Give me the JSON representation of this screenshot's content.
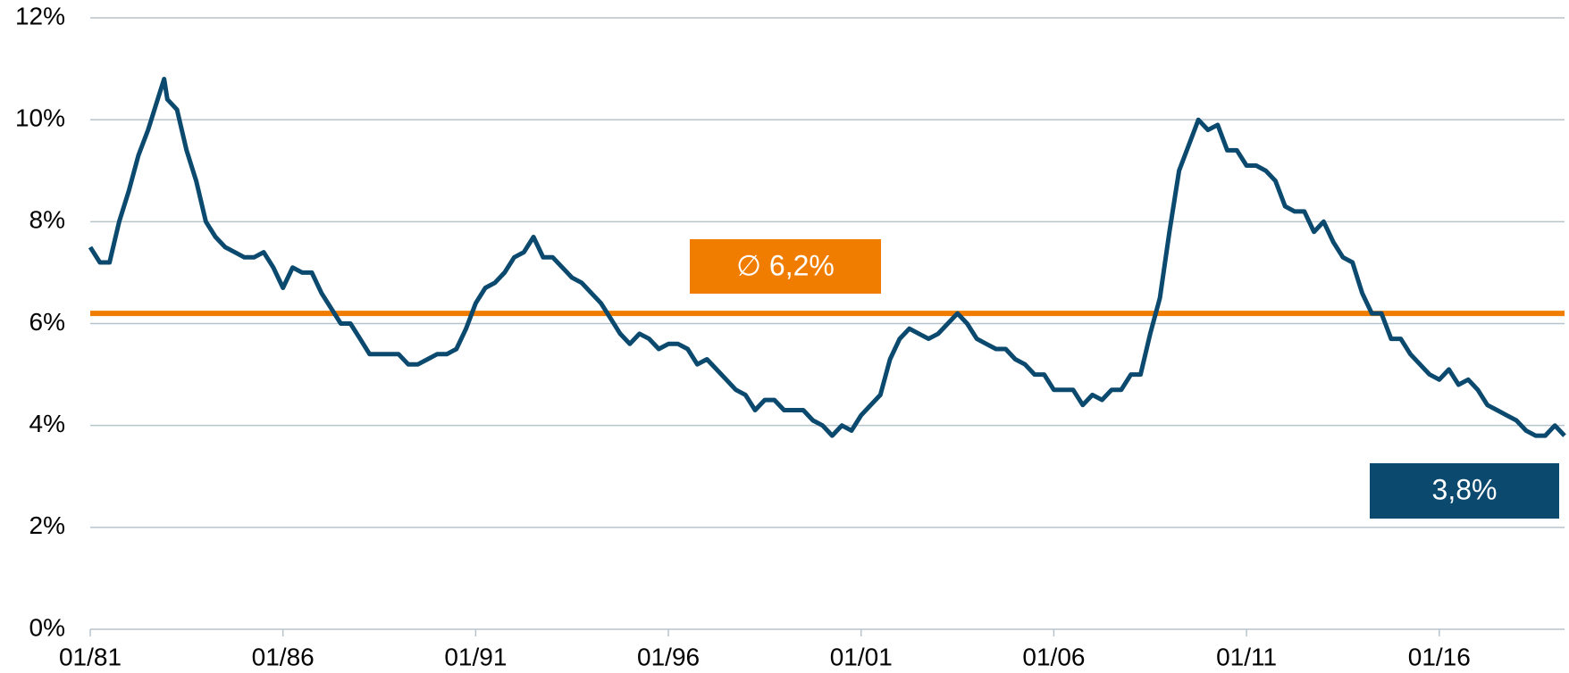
{
  "chart_data": {
    "type": "line",
    "x": [
      "01/81",
      "04/81",
      "07/81",
      "10/81",
      "01/82",
      "04/82",
      "07/82",
      "10/82",
      "12/82",
      "01/83",
      "04/83",
      "07/83",
      "10/83",
      "01/84",
      "04/84",
      "07/84",
      "10/84",
      "01/85",
      "04/85",
      "07/85",
      "10/85",
      "01/86",
      "04/86",
      "07/86",
      "10/86",
      "01/87",
      "04/87",
      "07/87",
      "10/87",
      "01/88",
      "04/88",
      "07/88",
      "10/88",
      "01/89",
      "04/89",
      "07/89",
      "10/89",
      "01/90",
      "04/90",
      "07/90",
      "10/90",
      "01/91",
      "04/91",
      "07/91",
      "10/91",
      "01/92",
      "04/92",
      "07/92",
      "10/92",
      "01/93",
      "04/93",
      "07/93",
      "10/93",
      "01/94",
      "04/94",
      "07/94",
      "10/94",
      "01/95",
      "04/95",
      "07/95",
      "10/95",
      "01/96",
      "04/96",
      "07/96",
      "10/96",
      "01/97",
      "04/97",
      "07/97",
      "10/97",
      "01/98",
      "04/98",
      "07/98",
      "10/98",
      "01/99",
      "04/99",
      "07/99",
      "10/99",
      "01/00",
      "04/00",
      "07/00",
      "10/00",
      "01/01",
      "04/01",
      "07/01",
      "10/01",
      "01/02",
      "04/02",
      "07/02",
      "10/02",
      "01/03",
      "04/03",
      "07/03",
      "10/03",
      "01/04",
      "04/04",
      "07/04",
      "10/04",
      "01/05",
      "04/05",
      "07/05",
      "10/05",
      "01/06",
      "04/06",
      "07/06",
      "10/06",
      "01/07",
      "04/07",
      "07/07",
      "10/07",
      "01/08",
      "04/08",
      "07/08",
      "10/08",
      "01/09",
      "04/09",
      "07/09",
      "10/09",
      "01/10",
      "04/10",
      "07/10",
      "10/10",
      "01/11",
      "04/11",
      "07/11",
      "10/11",
      "01/12",
      "04/12",
      "07/12",
      "10/12",
      "01/13",
      "04/13",
      "07/13",
      "10/13",
      "01/14",
      "04/14",
      "07/14",
      "10/14",
      "01/15",
      "04/15",
      "07/15",
      "10/15",
      "01/16",
      "04/16",
      "07/16",
      "10/16",
      "01/17",
      "04/17",
      "07/17",
      "10/17",
      "01/18",
      "04/18",
      "07/18",
      "10/18",
      "01/19",
      "04/19"
    ],
    "series": [
      {
        "color": "#0b4a6e",
        "values": [
          7.5,
          7.2,
          7.2,
          8.0,
          8.6,
          9.3,
          9.8,
          10.4,
          10.8,
          10.4,
          10.2,
          9.4,
          8.8,
          8.0,
          7.7,
          7.5,
          7.4,
          7.3,
          7.3,
          7.4,
          7.1,
          6.7,
          7.1,
          7.0,
          7.0,
          6.6,
          6.3,
          6.0,
          6.0,
          5.7,
          5.4,
          5.4,
          5.4,
          5.4,
          5.2,
          5.2,
          5.3,
          5.4,
          5.4,
          5.5,
          5.9,
          6.4,
          6.7,
          6.8,
          7.0,
          7.3,
          7.4,
          7.7,
          7.3,
          7.3,
          7.1,
          6.9,
          6.8,
          6.6,
          6.4,
          6.1,
          5.8,
          5.6,
          5.8,
          5.7,
          5.5,
          5.6,
          5.6,
          5.5,
          5.2,
          5.3,
          5.1,
          4.9,
          4.7,
          4.6,
          4.3,
          4.5,
          4.5,
          4.3,
          4.3,
          4.3,
          4.1,
          4.0,
          3.8,
          4.0,
          3.9,
          4.2,
          4.4,
          4.6,
          5.3,
          5.7,
          5.9,
          5.8,
          5.7,
          5.8,
          6.0,
          6.2,
          6.0,
          5.7,
          5.6,
          5.5,
          5.5,
          5.3,
          5.2,
          5.0,
          5.0,
          4.7,
          4.7,
          4.7,
          4.4,
          4.6,
          4.5,
          4.7,
          4.7,
          5.0,
          5.0,
          5.8,
          6.5,
          7.8,
          9.0,
          9.5,
          10.0,
          9.8,
          9.9,
          9.4,
          9.4,
          9.1,
          9.1,
          9.0,
          8.8,
          8.3,
          8.2,
          8.2,
          7.8,
          8.0,
          7.6,
          7.3,
          7.2,
          6.6,
          6.2,
          6.2,
          5.7,
          5.7,
          5.4,
          5.2,
          5.0,
          4.9,
          5.1,
          4.8,
          4.9,
          4.7,
          4.4,
          4.3,
          4.2,
          4.1,
          3.9,
          3.8,
          3.8,
          4.0,
          3.8
        ]
      }
    ],
    "xlim": [
      "01/81",
      "04/19"
    ],
    "xticks": [
      "01/81",
      "01/86",
      "01/91",
      "01/96",
      "01/01",
      "01/06",
      "01/11",
      "01/16"
    ],
    "ylim": [
      0,
      12
    ],
    "yticks": [
      {
        "value": 0,
        "label": "0%"
      },
      {
        "value": 2,
        "label": "2%"
      },
      {
        "value": 4,
        "label": "4%"
      },
      {
        "value": 6,
        "label": "6%"
      },
      {
        "value": 8,
        "label": "8%"
      },
      {
        "value": 10,
        "label": "10%"
      },
      {
        "value": 12,
        "label": "12%"
      }
    ],
    "grid": true,
    "average": {
      "value": 6.2,
      "label": "∅ 6,2%",
      "color": "#f07d00"
    },
    "end_label": {
      "value": 3.8,
      "label": "3,8%"
    }
  }
}
